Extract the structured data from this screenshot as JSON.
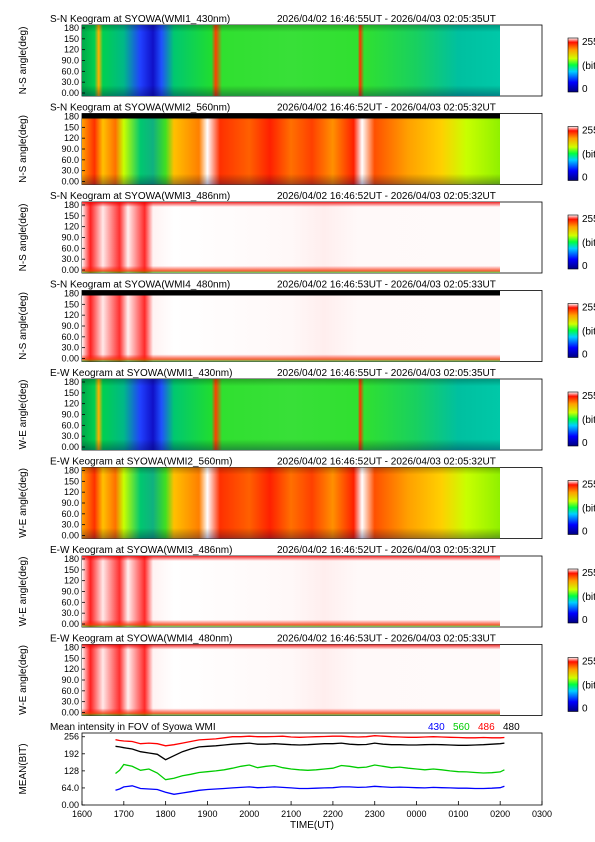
{
  "panels": [
    {
      "title": "S-N Keogram at SYOWA(WMI1_430nm)",
      "time_range": "2026/04/02 16:46:55UT - 2026/04/03 02:05:35UT",
      "ylabel": "N-S angle(deg)",
      "scheme": "green"
    },
    {
      "title": "S-N Keogram at SYOWA(WMI2_560nm)",
      "time_range": "2026/04/02 16:46:52UT - 2026/04/03 02:05:32UT",
      "ylabel": "N-S angle(deg)",
      "scheme": "hot"
    },
    {
      "title": "S-N Keogram at SYOWA(WMI3_486nm)",
      "time_range": "2026/04/02 16:46:52UT - 2026/04/03 02:05:32UT",
      "ylabel": "N-S angle(deg)",
      "scheme": "sat"
    },
    {
      "title": "S-N Keogram at SYOWA(WMI4_480nm)",
      "time_range": "2026/04/02 16:46:53UT - 2026/04/03 02:05:33UT",
      "ylabel": "N-S angle(deg)",
      "scheme": "sat"
    },
    {
      "title": "E-W Keogram at SYOWA(WMI1_430nm)",
      "time_range": "2026/04/02 16:46:55UT - 2026/04/03 02:05:35UT",
      "ylabel": "W-E angle(deg)",
      "scheme": "green"
    },
    {
      "title": "E-W Keogram at SYOWA(WMI2_560nm)",
      "time_range": "2026/04/02 16:46:52UT - 2026/04/03 02:05:32UT",
      "ylabel": "W-E angle(deg)",
      "scheme": "hot"
    },
    {
      "title": "E-W Keogram at SYOWA(WMI3_486nm)",
      "time_range": "2026/04/02 16:46:52UT - 2026/04/03 02:05:32UT",
      "ylabel": "W-E angle(deg)",
      "scheme": "sat"
    },
    {
      "title": "E-W Keogram at SYOWA(WMI4_480nm)",
      "time_range": "2026/04/02 16:46:53UT - 2026/04/03 02:05:33UT",
      "ylabel": "W-E angle(deg)",
      "scheme": "sat"
    }
  ],
  "y_ticks": [
    "180",
    "150",
    "120",
    "90.0",
    "60.0",
    "30.0",
    "0.00"
  ],
  "colorbar": {
    "max_label": "255",
    "unit_label": "(bit)",
    "min_label": "0"
  },
  "mean_panel": {
    "title": "Mean intensity in FOV of Syowa WMI",
    "ylabel": "MEAN(BIT)",
    "y_ticks": [
      "256",
      "192",
      "128",
      "64.0",
      "0.00"
    ]
  },
  "x_ticks": [
    "1600",
    "1700",
    "1800",
    "1900",
    "2000",
    "2100",
    "2200",
    "2300",
    "0000",
    "0100",
    "0200",
    "0300"
  ],
  "xlabel": "TIME(UT)",
  "colors": {
    "ch430": "#0000ff",
    "ch560": "#00cc00",
    "ch486": "#ff0000",
    "ch480": "#000000"
  },
  "chart_data": {
    "type": "line",
    "title": "Mean intensity in FOV of Syowa WMI",
    "xlabel": "TIME(UT)",
    "ylabel": "MEAN(BIT)",
    "xlim": [
      16.0,
      27.0
    ],
    "ylim": [
      0,
      270
    ],
    "x": [
      16.8,
      16.9,
      17.0,
      17.2,
      17.4,
      17.6,
      17.8,
      18.0,
      18.2,
      18.4,
      18.6,
      18.8,
      19.0,
      19.2,
      19.4,
      19.6,
      19.8,
      20.0,
      20.2,
      20.4,
      20.6,
      20.8,
      21.0,
      21.2,
      21.4,
      21.6,
      21.8,
      22.0,
      22.2,
      22.4,
      22.6,
      22.8,
      23.0,
      23.2,
      23.4,
      23.6,
      23.8,
      24.0,
      24.2,
      24.4,
      24.6,
      24.8,
      25.0,
      25.2,
      25.4,
      25.6,
      25.8,
      26.0,
      26.1
    ],
    "series": [
      {
        "name": "430",
        "color": "#0000ff",
        "values": [
          55,
          60,
          68,
          72,
          62,
          60,
          58,
          48,
          40,
          45,
          50,
          55,
          58,
          60,
          62,
          64,
          66,
          68,
          65,
          66,
          68,
          66,
          64,
          62,
          62,
          63,
          64,
          65,
          68,
          68,
          66,
          67,
          70,
          68,
          66,
          67,
          66,
          65,
          64,
          66,
          65,
          64,
          63,
          63,
          62,
          62,
          63,
          65,
          70
        ]
      },
      {
        "name": "560",
        "color": "#00cc00",
        "values": [
          118,
          130,
          152,
          145,
          130,
          135,
          120,
          95,
          100,
          110,
          115,
          122,
          125,
          128,
          132,
          138,
          145,
          150,
          140,
          145,
          148,
          140,
          135,
          132,
          130,
          132,
          135,
          138,
          148,
          145,
          140,
          142,
          150,
          145,
          140,
          142,
          138,
          135,
          132,
          135,
          132,
          128,
          125,
          124,
          122,
          120,
          121,
          124,
          132
        ]
      },
      {
        "name": "486",
        "color": "#ff0000",
        "values": [
          245,
          242,
          240,
          238,
          230,
          232,
          230,
          222,
          226,
          232,
          238,
          244,
          246,
          248,
          252,
          256,
          256,
          258,
          256,
          256,
          257,
          258,
          255,
          254,
          255,
          256,
          257,
          258,
          258,
          256,
          255,
          256,
          260,
          258,
          256,
          255,
          254,
          254,
          255,
          256,
          255,
          254,
          253,
          252,
          252,
          253,
          252,
          252,
          253
        ]
      },
      {
        "name": "480",
        "color": "#000000",
        "values": [
          220,
          218,
          215,
          210,
          200,
          195,
          190,
          170,
          185,
          200,
          210,
          218,
          220,
          222,
          225,
          228,
          230,
          232,
          228,
          228,
          230,
          228,
          226,
          225,
          226,
          228,
          230,
          230,
          232,
          228,
          226,
          227,
          232,
          228,
          226,
          226,
          225,
          225,
          226,
          227,
          226,
          225,
          224,
          224,
          225,
          226,
          228,
          230,
          232
        ]
      }
    ]
  }
}
